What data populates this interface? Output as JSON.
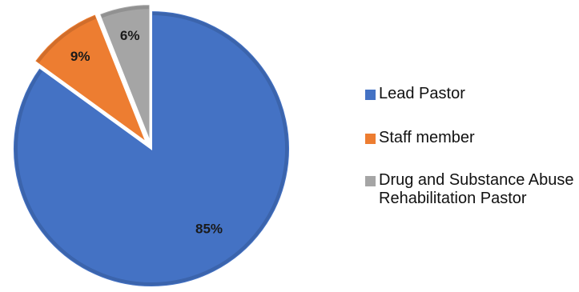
{
  "chart_data": {
    "type": "pie",
    "categories": [
      "Lead Pastor",
      "Staff member",
      "Drug and Substance Abuse Rehabilitation Pastor"
    ],
    "values": [
      85,
      9,
      6
    ],
    "data_labels": [
      "85%",
      "9%",
      "6%"
    ],
    "colors": [
      "#4472C4",
      "#ED7D31",
      "#A5A5A5"
    ],
    "legend_position": "right",
    "title": ""
  }
}
